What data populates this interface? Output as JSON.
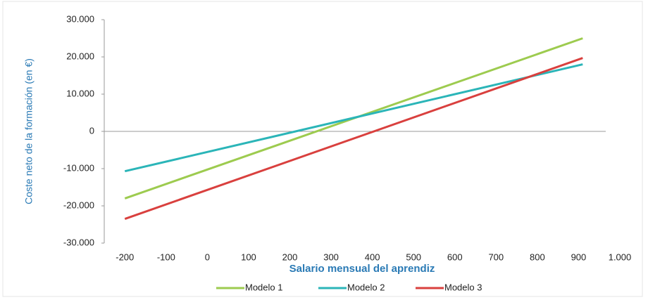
{
  "chart_data": {
    "type": "line",
    "x_label": "Salario mensual del aprendiz",
    "y_label": "Coste neto de la formación (en €)",
    "x": [
      -200,
      910
    ],
    "series": [
      {
        "name": "Modelo 1",
        "color": "#9dcb4f",
        "values": [
          -18000,
          25000
        ]
      },
      {
        "name": "Modelo 2",
        "color": "#2bb5b8",
        "values": [
          -10700,
          18000
        ]
      },
      {
        "name": "Modelo 3",
        "color": "#d9403e",
        "values": [
          -23500,
          19700
        ]
      }
    ],
    "xlim": [
      -250,
      1000
    ],
    "xticks": [
      -200,
      -100,
      0,
      100,
      200,
      300,
      400,
      500,
      600,
      700,
      800,
      900,
      {
        "value": 1000,
        "label": "1.000"
      }
    ],
    "ylim": [
      -30000,
      30000
    ],
    "yticks": [
      {
        "value": 30000,
        "label": "30.000"
      },
      {
        "value": 20000,
        "label": "20.000"
      },
      {
        "value": 10000,
        "label": "10.000"
      },
      0,
      {
        "value": -10000,
        "label": "-10.000"
      },
      {
        "value": -20000,
        "label": "-20.000"
      },
      {
        "value": -30000,
        "label": "-30.000"
      }
    ],
    "legend": "bottom"
  }
}
